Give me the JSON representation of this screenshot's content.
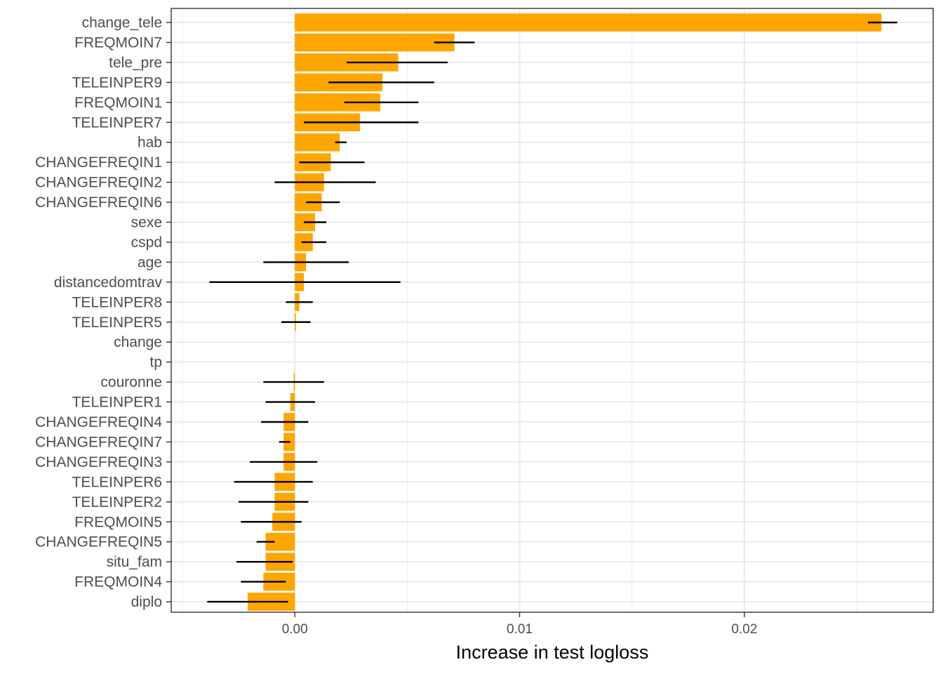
{
  "chart_data": {
    "type": "bar",
    "orientation": "horizontal",
    "title": "",
    "xlabel": "Increase in test logloss",
    "ylabel": "",
    "xlim": [
      -0.0055,
      0.0284
    ],
    "xticks": [
      0.0,
      0.01,
      0.02
    ],
    "xtick_labels": [
      "0.00",
      "0.01",
      "0.02"
    ],
    "grid": true,
    "legend": "none",
    "bar_color": "#FFA500",
    "error_color": "#000000",
    "categories": [
      "change_tele",
      "FREQMOIN7",
      "tele_pre",
      "TELEINPER9",
      "FREQMOIN1",
      "TELEINPER7",
      "hab",
      "CHANGEFREQIN1",
      "CHANGEFREQIN2",
      "CHANGEFREQIN6",
      "sexe",
      "cspd",
      "age",
      "distancedomtrav",
      "TELEINPER8",
      "TELEINPER5",
      "change",
      "tp",
      "couronne",
      "TELEINPER1",
      "CHANGEFREQIN4",
      "CHANGEFREQIN7",
      "CHANGEFREQIN3",
      "TELEINPER6",
      "TELEINPER2",
      "FREQMOIN5",
      "CHANGEFREQIN5",
      "situ_fam",
      "FREQMOIN4",
      "diplo"
    ],
    "values": [
      0.0261,
      0.0071,
      0.0046,
      0.0039,
      0.0038,
      0.0029,
      0.002,
      0.0016,
      0.0013,
      0.0012,
      0.0009,
      0.0008,
      0.0005,
      0.0004,
      0.0002,
      5e-05,
      0,
      0,
      -5e-05,
      -0.0002,
      -0.0005,
      -0.0005,
      -0.0005,
      -0.0009,
      -0.0009,
      -0.001,
      -0.0013,
      -0.0013,
      -0.0014,
      -0.0021
    ],
    "error_low": [
      0.0255,
      0.0062,
      0.0023,
      0.0015,
      0.0022,
      0.0004,
      0.0018,
      0.0002,
      -0.0009,
      0.0005,
      0.0004,
      0.0003,
      -0.0014,
      -0.0038,
      -0.0004,
      -0.0006,
      null,
      null,
      -0.0014,
      -0.0013,
      -0.0015,
      -0.0007,
      -0.002,
      -0.0027,
      -0.0025,
      -0.0024,
      -0.0017,
      -0.0026,
      -0.0024,
      -0.0039
    ],
    "error_high": [
      0.0268,
      0.008,
      0.0068,
      0.0062,
      0.0055,
      0.0055,
      0.0023,
      0.0031,
      0.0036,
      0.002,
      0.0014,
      0.0014,
      0.0024,
      0.0047,
      0.0008,
      0.0007,
      null,
      null,
      0.0013,
      0.0009,
      0.0006,
      -0.0002,
      0.001,
      0.0008,
      0.0006,
      0.0003,
      -0.0009,
      -0.0001,
      -0.0004,
      -0.0003
    ]
  }
}
